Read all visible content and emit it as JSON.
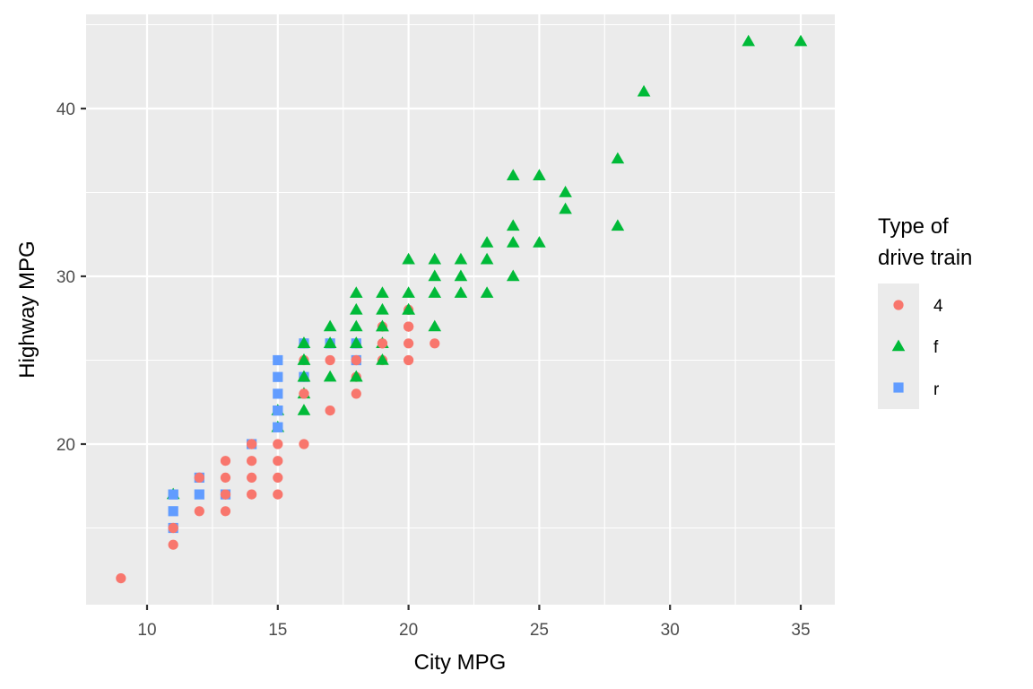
{
  "chart_data": {
    "type": "scatter",
    "title": "",
    "xlabel": "City MPG",
    "ylabel": "Highway MPG",
    "xlim": [
      8.7,
      35.3
    ],
    "ylim": [
      10.4,
      45.6
    ],
    "x_ticks": [
      10,
      15,
      20,
      25,
      30,
      35
    ],
    "y_ticks": [
      20,
      30,
      40
    ],
    "grid": true,
    "legend": {
      "title_lines": [
        "Type of",
        "drive train"
      ],
      "position": "right",
      "entries": [
        {
          "label": "4",
          "shape": "circle",
          "color": "#F8766D"
        },
        {
          "label": "f",
          "shape": "triangle",
          "color": "#00BA38"
        },
        {
          "label": "r",
          "shape": "square",
          "color": "#619CFF"
        }
      ]
    },
    "series": [
      {
        "name": "4",
        "shape": "circle",
        "color": "#F8766D",
        "points": [
          [
            9,
            12
          ],
          [
            11,
            14
          ],
          [
            11,
            15
          ],
          [
            12,
            16
          ],
          [
            12,
            18
          ],
          [
            13,
            16
          ],
          [
            13,
            17
          ],
          [
            13,
            18
          ],
          [
            13,
            19
          ],
          [
            14,
            17
          ],
          [
            14,
            18
          ],
          [
            14,
            19
          ],
          [
            14,
            20
          ],
          [
            15,
            17
          ],
          [
            15,
            18
          ],
          [
            15,
            19
          ],
          [
            15,
            20
          ],
          [
            16,
            20
          ],
          [
            16,
            23
          ],
          [
            16,
            24
          ],
          [
            16,
            25
          ],
          [
            16,
            26
          ],
          [
            17,
            22
          ],
          [
            17,
            25
          ],
          [
            17,
            26
          ],
          [
            18,
            23
          ],
          [
            18,
            24
          ],
          [
            18,
            25
          ],
          [
            18,
            26
          ],
          [
            19,
            25
          ],
          [
            19,
            26
          ],
          [
            19,
            27
          ],
          [
            20,
            25
          ],
          [
            20,
            26
          ],
          [
            20,
            27
          ],
          [
            20,
            28
          ],
          [
            21,
            26
          ]
        ]
      },
      {
        "name": "r",
        "shape": "square",
        "color": "#619CFF",
        "points": [
          [
            11,
            15
          ],
          [
            11,
            16
          ],
          [
            11,
            17
          ],
          [
            12,
            17
          ],
          [
            12,
            18
          ],
          [
            13,
            17
          ],
          [
            14,
            20
          ],
          [
            15,
            21
          ],
          [
            15,
            22
          ],
          [
            15,
            23
          ],
          [
            15,
            24
          ],
          [
            15,
            25
          ],
          [
            16,
            24
          ],
          [
            16,
            26
          ],
          [
            17,
            26
          ],
          [
            18,
            25
          ],
          [
            18,
            26
          ]
        ]
      },
      {
        "name": "f",
        "shape": "triangle",
        "color": "#00BA38",
        "points": [
          [
            11,
            17
          ],
          [
            15,
            21
          ],
          [
            15,
            22
          ],
          [
            16,
            22
          ],
          [
            16,
            23
          ],
          [
            16,
            24
          ],
          [
            16,
            25
          ],
          [
            16,
            26
          ],
          [
            17,
            24
          ],
          [
            17,
            26
          ],
          [
            17,
            27
          ],
          [
            18,
            24
          ],
          [
            18,
            26
          ],
          [
            18,
            27
          ],
          [
            18,
            28
          ],
          [
            18,
            29
          ],
          [
            19,
            25
          ],
          [
            19,
            26
          ],
          [
            19,
            27
          ],
          [
            19,
            28
          ],
          [
            19,
            29
          ],
          [
            20,
            28
          ],
          [
            20,
            29
          ],
          [
            20,
            31
          ],
          [
            21,
            27
          ],
          [
            21,
            29
          ],
          [
            21,
            30
          ],
          [
            21,
            31
          ],
          [
            22,
            29
          ],
          [
            22,
            30
          ],
          [
            22,
            31
          ],
          [
            23,
            29
          ],
          [
            23,
            31
          ],
          [
            23,
            32
          ],
          [
            24,
            30
          ],
          [
            24,
            32
          ],
          [
            24,
            33
          ],
          [
            24,
            36
          ],
          [
            25,
            32
          ],
          [
            25,
            36
          ],
          [
            26,
            34
          ],
          [
            26,
            35
          ],
          [
            28,
            33
          ],
          [
            28,
            37
          ],
          [
            29,
            41
          ],
          [
            33,
            44
          ],
          [
            35,
            44
          ]
        ]
      }
    ],
    "overlays_on_top": [
      {
        "shape": "circle",
        "color": "#F8766D",
        "points": [
          [
            11,
            15
          ],
          [
            12,
            18
          ],
          [
            13,
            17
          ],
          [
            14,
            20
          ],
          [
            18,
            25
          ],
          [
            19,
            26
          ],
          [
            20,
            27
          ],
          [
            16,
            23
          ]
        ]
      },
      {
        "shape": "square",
        "color": "#619CFF",
        "points": [
          [
            11,
            17
          ],
          [
            15,
            21
          ],
          [
            15,
            22
          ]
        ]
      },
      {
        "shape": "triangle",
        "color": "#00BA38",
        "points": [
          [
            16,
            24
          ],
          [
            16,
            25
          ],
          [
            16,
            26
          ],
          [
            17,
            26
          ],
          [
            18,
            26
          ],
          [
            19,
            27
          ],
          [
            20,
            28
          ],
          [
            18,
            24
          ]
        ]
      }
    ]
  },
  "axes": {
    "x_title": "City MPG",
    "y_title": "Highway MPG"
  },
  "legend": {
    "title_line1": "Type of",
    "title_line2": "drive train",
    "items": [
      "4",
      "f",
      "r"
    ]
  }
}
